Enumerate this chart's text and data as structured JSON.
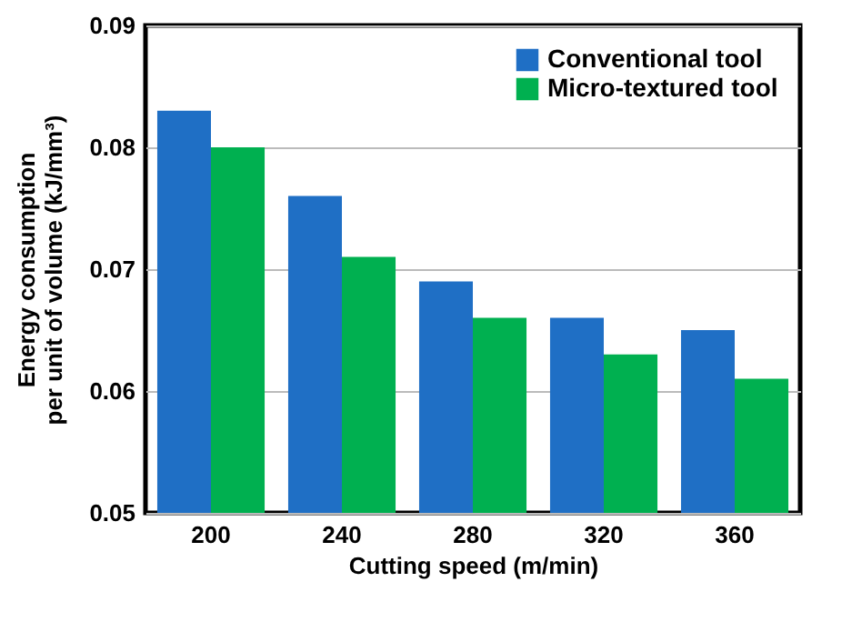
{
  "chart_data": {
    "type": "bar",
    "xlabel": "Cutting speed (m/min)",
    "ylabel": "Energy consumption\nper unit of volume (kJ/mm³)",
    "categories": [
      "200",
      "240",
      "280",
      "320",
      "360"
    ],
    "series": [
      {
        "name": "Conventional tool",
        "color": "#1f6fc5",
        "values": [
          0.083,
          0.076,
          0.069,
          0.066,
          0.065
        ]
      },
      {
        "name": "Micro-textured tool",
        "color": "#00b050",
        "values": [
          0.08,
          0.071,
          0.066,
          0.063,
          0.061
        ]
      }
    ],
    "ylim": [
      0.05,
      0.09
    ],
    "yticks": [
      0.05,
      0.06,
      0.07,
      0.08,
      0.09
    ],
    "grid": "y",
    "legend": "top right"
  }
}
